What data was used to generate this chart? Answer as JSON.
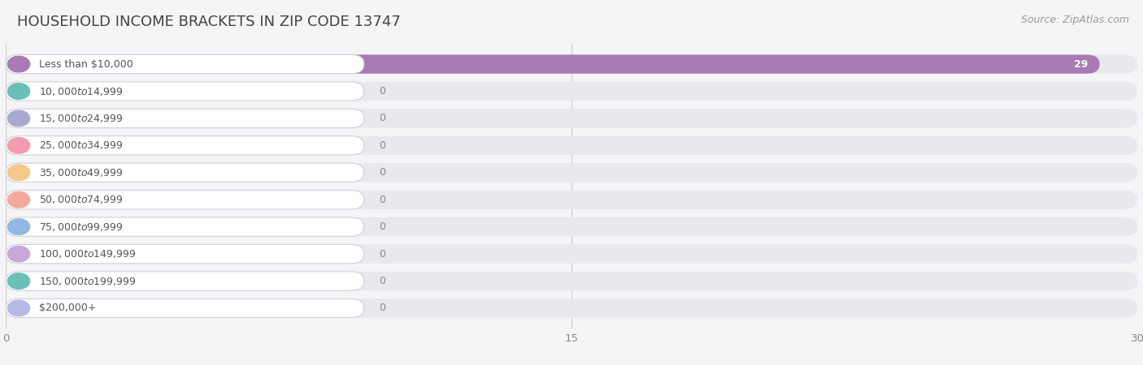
{
  "title": "HOUSEHOLD INCOME BRACKETS IN ZIP CODE 13747",
  "source": "Source: ZipAtlas.com",
  "categories": [
    "Less than $10,000",
    "$10,000 to $14,999",
    "$15,000 to $24,999",
    "$25,000 to $34,999",
    "$35,000 to $49,999",
    "$50,000 to $74,999",
    "$75,000 to $99,999",
    "$100,000 to $149,999",
    "$150,000 to $199,999",
    "$200,000+"
  ],
  "values": [
    29,
    0,
    0,
    0,
    0,
    0,
    0,
    0,
    0,
    0
  ],
  "bar_colors": [
    "#a97bb5",
    "#6abfb8",
    "#a8a8d0",
    "#f49ab0",
    "#f5c98a",
    "#f5a99a",
    "#90b8e0",
    "#c8a8d8",
    "#6abfb8",
    "#b8b8e8"
  ],
  "xlim": [
    0,
    30
  ],
  "xticks": [
    0,
    15,
    30
  ],
  "background_color": "#f5f5f8",
  "bar_bg_color": "#e8e8ee",
  "title_fontsize": 13,
  "source_fontsize": 9,
  "label_fontsize": 9,
  "value_fontsize": 9
}
